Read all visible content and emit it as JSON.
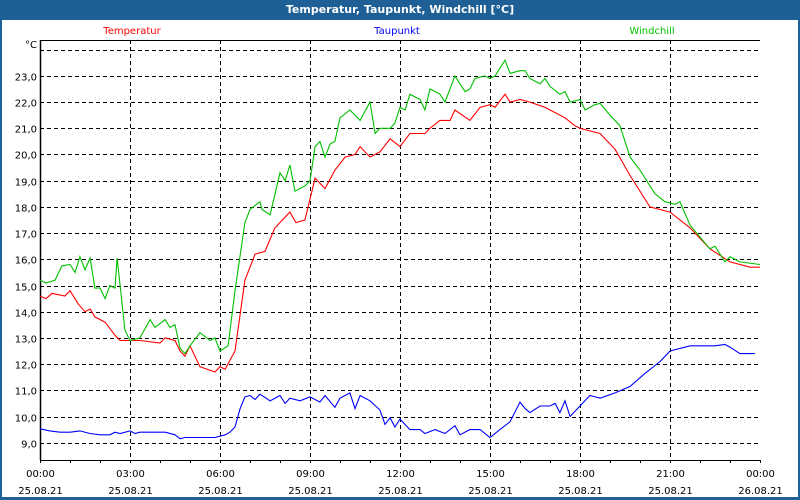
{
  "window": {
    "title": "Temperatur, Taupunkt, Windchill [°C]"
  },
  "chart_data": {
    "type": "line",
    "title": "Temperatur, Taupunkt, Windchill [°C]",
    "ylabel": "°C",
    "xlabel": "",
    "ylim": [
      8.34,
      24.37
    ],
    "xlim": [
      0,
      24
    ],
    "grid": true,
    "legend_placement": "top",
    "y_ticks": [
      9,
      10,
      11,
      12,
      13,
      14,
      15,
      16,
      17,
      18,
      19,
      20,
      21,
      22,
      23,
      24
    ],
    "y_tick_labels": [
      "9,0",
      "10,0",
      "11,0",
      "12,0",
      "13,0",
      "14,0",
      "15,0",
      "16,0",
      "17,0",
      "18,0",
      "19,0",
      "20,0",
      "21,0",
      "22,0",
      "23,0",
      ""
    ],
    "x_ticks": [
      0,
      3,
      6,
      9,
      12,
      15,
      18,
      21,
      24
    ],
    "x_tick_labels": [
      {
        "time": "00:00",
        "date": "25.08.21"
      },
      {
        "time": "03:00",
        "date": "25.08.21"
      },
      {
        "time": "06:00",
        "date": "25.08.21"
      },
      {
        "time": "09:00",
        "date": "25.08.21"
      },
      {
        "time": "12:00",
        "date": "25.08.21"
      },
      {
        "time": "15:00",
        "date": "25.08.21"
      },
      {
        "time": "18:00",
        "date": "25.08.21"
      },
      {
        "time": "21:00",
        "date": "25.08.21"
      },
      {
        "time": "00:00",
        "date": "26.08.21"
      }
    ],
    "series": [
      {
        "name": "Temperatur",
        "color": "#ff0000",
        "x": [
          0,
          0.2,
          0.4,
          0.83,
          1,
          1.27,
          1.5,
          1.67,
          1.83,
          2.17,
          2.5,
          2.67,
          3,
          3.33,
          4,
          4.17,
          4.5,
          4.67,
          4.83,
          5,
          5.33,
          5.83,
          6,
          6.17,
          6.5,
          6.83,
          7.17,
          7.5,
          7.83,
          8.33,
          8.53,
          8.83,
          9.17,
          9.5,
          9.83,
          10.17,
          10.5,
          10.67,
          11,
          11.33,
          11.67,
          12,
          12.33,
          12.83,
          13,
          13.33,
          13.67,
          13.83,
          14.33,
          14.67,
          15,
          15.17,
          15.5,
          15.67,
          16,
          16.33,
          16.83,
          17.17,
          17.5,
          17.83,
          18,
          18.33,
          18.67,
          19.17,
          19.67,
          20.33,
          21,
          21.67,
          22.33,
          23,
          23.67,
          24
        ],
        "y": [
          14.6,
          14.5,
          14.7,
          14.6,
          14.8,
          14.3,
          14.0,
          14.1,
          13.8,
          13.6,
          13.1,
          12.9,
          12.9,
          12.9,
          12.8,
          13.0,
          12.9,
          12.5,
          12.3,
          12.7,
          11.9,
          11.7,
          11.9,
          11.8,
          12.5,
          15.2,
          16.2,
          16.3,
          17.2,
          17.8,
          17.4,
          17.5,
          19.1,
          18.7,
          19.4,
          19.9,
          20.0,
          20.3,
          19.9,
          20.1,
          20.6,
          20.3,
          20.8,
          20.8,
          21.0,
          21.3,
          21.3,
          21.7,
          21.3,
          21.8,
          21.9,
          21.8,
          22.3,
          22.0,
          22.1,
          22.0,
          21.8,
          21.6,
          21.4,
          21.1,
          21.0,
          20.9,
          20.8,
          20.2,
          19.2,
          18.0,
          17.8,
          17.2,
          16.4,
          15.9,
          15.7,
          15.7
        ]
      },
      {
        "name": "Taupunkt",
        "color": "#0000ff",
        "x": [
          0,
          0.33,
          0.67,
          1,
          1.33,
          1.67,
          2,
          2.33,
          2.5,
          2.67,
          3,
          3.17,
          3.33,
          3.67,
          4.17,
          4.5,
          4.67,
          4.83,
          5.33,
          5.83,
          6.17,
          6.33,
          6.5,
          6.67,
          6.83,
          7,
          7.17,
          7.33,
          7.67,
          8,
          8.17,
          8.33,
          8.67,
          9,
          9.33,
          9.5,
          9.83,
          10,
          10.33,
          10.5,
          10.67,
          11,
          11.33,
          11.5,
          11.67,
          11.83,
          12,
          12.33,
          12.67,
          12.83,
          13.17,
          13.5,
          13.83,
          14,
          14.33,
          14.67,
          15,
          15.33,
          15.67,
          16,
          16.17,
          16.33,
          16.67,
          17,
          17.17,
          17.33,
          17.5,
          17.67,
          18,
          18.33,
          18.67,
          19.17,
          19.67,
          20.17,
          20.67,
          21,
          21.67,
          22,
          22.5,
          22.83,
          23,
          23.33,
          23.67,
          23.83
        ],
        "y": [
          9.53,
          9.45,
          9.4,
          9.4,
          9.45,
          9.35,
          9.3,
          9.3,
          9.4,
          9.35,
          9.45,
          9.35,
          9.4,
          9.4,
          9.4,
          9.3,
          9.15,
          9.2,
          9.2,
          9.2,
          9.3,
          9.4,
          9.6,
          10.3,
          10.75,
          10.8,
          10.65,
          10.85,
          10.6,
          10.8,
          10.5,
          10.7,
          10.6,
          10.75,
          10.55,
          10.8,
          10.35,
          10.7,
          10.9,
          10.3,
          10.8,
          10.6,
          10.25,
          9.7,
          9.95,
          9.6,
          9.9,
          9.5,
          9.5,
          9.35,
          9.5,
          9.35,
          9.65,
          9.3,
          9.5,
          9.5,
          9.2,
          9.5,
          9.8,
          10.55,
          10.3,
          10.15,
          10.4,
          10.4,
          10.5,
          10.15,
          10.6,
          10.0,
          10.4,
          10.8,
          10.7,
          10.9,
          11.15,
          11.65,
          12.1,
          12.5,
          12.7,
          12.7,
          12.7,
          12.75,
          12.65,
          12.4,
          12.4,
          12.4
        ]
      },
      {
        "name": "Windchill",
        "color": "#00c000",
        "x": [
          0,
          0.2,
          0.5,
          0.73,
          1,
          1.17,
          1.33,
          1.5,
          1.67,
          1.83,
          2,
          2.17,
          2.33,
          2.5,
          2.57,
          2.67,
          2.83,
          3,
          3.33,
          3.67,
          3.83,
          4.17,
          4.33,
          4.5,
          4.67,
          4.83,
          5,
          5.33,
          5.67,
          5.83,
          6,
          6.27,
          6.5,
          6.83,
          7,
          7.33,
          7.4,
          7.67,
          8,
          8.17,
          8.33,
          8.5,
          8.83,
          9,
          9.17,
          9.33,
          9.5,
          9.67,
          9.83,
          10,
          10.33,
          10.67,
          11,
          11.17,
          11.33,
          11.67,
          11.83,
          12,
          12.17,
          12.33,
          12.67,
          12.83,
          13,
          13.33,
          13.5,
          13.83,
          14.17,
          14.33,
          14.5,
          14.83,
          15,
          15.17,
          15.5,
          15.67,
          16,
          16.17,
          16.33,
          16.67,
          16.83,
          17,
          17.33,
          17.5,
          17.67,
          18,
          18.17,
          18.5,
          18.67,
          19,
          19.33,
          19.67,
          20,
          20.5,
          20.83,
          21.17,
          21.33,
          21.67,
          22.33,
          22.5,
          22.83,
          23,
          23.33,
          24
        ],
        "y": [
          15.2,
          15.1,
          15.2,
          15.75,
          15.8,
          15.5,
          16.1,
          15.6,
          16.05,
          14.9,
          14.9,
          14.5,
          15.0,
          14.9,
          16.05,
          15.0,
          13.3,
          12.9,
          13.0,
          13.7,
          13.4,
          13.7,
          13.4,
          13.5,
          12.6,
          12.4,
          12.7,
          13.2,
          12.9,
          13.0,
          12.5,
          12.7,
          14.8,
          17.4,
          17.9,
          18.2,
          17.9,
          17.7,
          19.3,
          19.0,
          19.6,
          18.6,
          18.8,
          19.0,
          20.3,
          20.5,
          19.9,
          20.4,
          20.5,
          21.4,
          21.7,
          21.3,
          22.0,
          20.8,
          21.0,
          21.0,
          21.2,
          21.8,
          21.7,
          22.3,
          22.1,
          21.7,
          22.5,
          22.3,
          22.0,
          23.0,
          22.4,
          22.5,
          22.9,
          23.0,
          22.9,
          23.0,
          23.6,
          23.1,
          23.2,
          23.2,
          22.9,
          22.7,
          22.9,
          22.6,
          22.3,
          22.4,
          22.0,
          22.1,
          21.7,
          21.9,
          21.95,
          21.5,
          21.1,
          19.9,
          19.4,
          18.5,
          18.2,
          18.1,
          18.2,
          17.3,
          16.4,
          16.5,
          15.9,
          16.1,
          15.9,
          15.8
        ]
      }
    ]
  }
}
